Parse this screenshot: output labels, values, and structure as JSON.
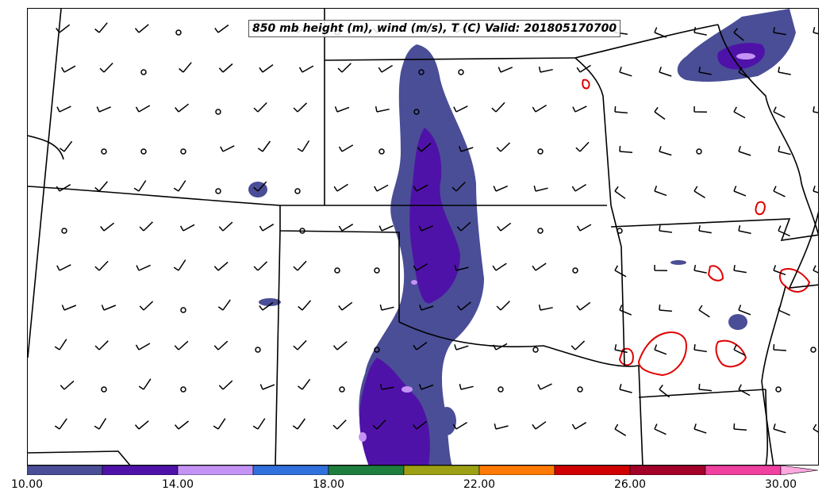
{
  "title": "850 mb height (m), wind (m/s), T (C) Valid: 201805170700",
  "colorbar": {
    "colors": [
      "#4a4e96",
      "#4f12a8",
      "#c493f5",
      "#3070dc",
      "#1e7e3e",
      "#9da012",
      "#ff7a00",
      "#d00000",
      "#a3002a",
      "#f040a0",
      "#ffa8e0"
    ],
    "tick_labels": [
      "10.00",
      "14.00",
      "18.00",
      "22.00",
      "26.00",
      "30.00"
    ]
  },
  "legend_colors": {
    "shade_low": "#4a4e96",
    "shade_mid": "#4f12a8",
    "shade_high": "#c493f5",
    "contour": "#e00000",
    "borders": "#000000"
  }
}
